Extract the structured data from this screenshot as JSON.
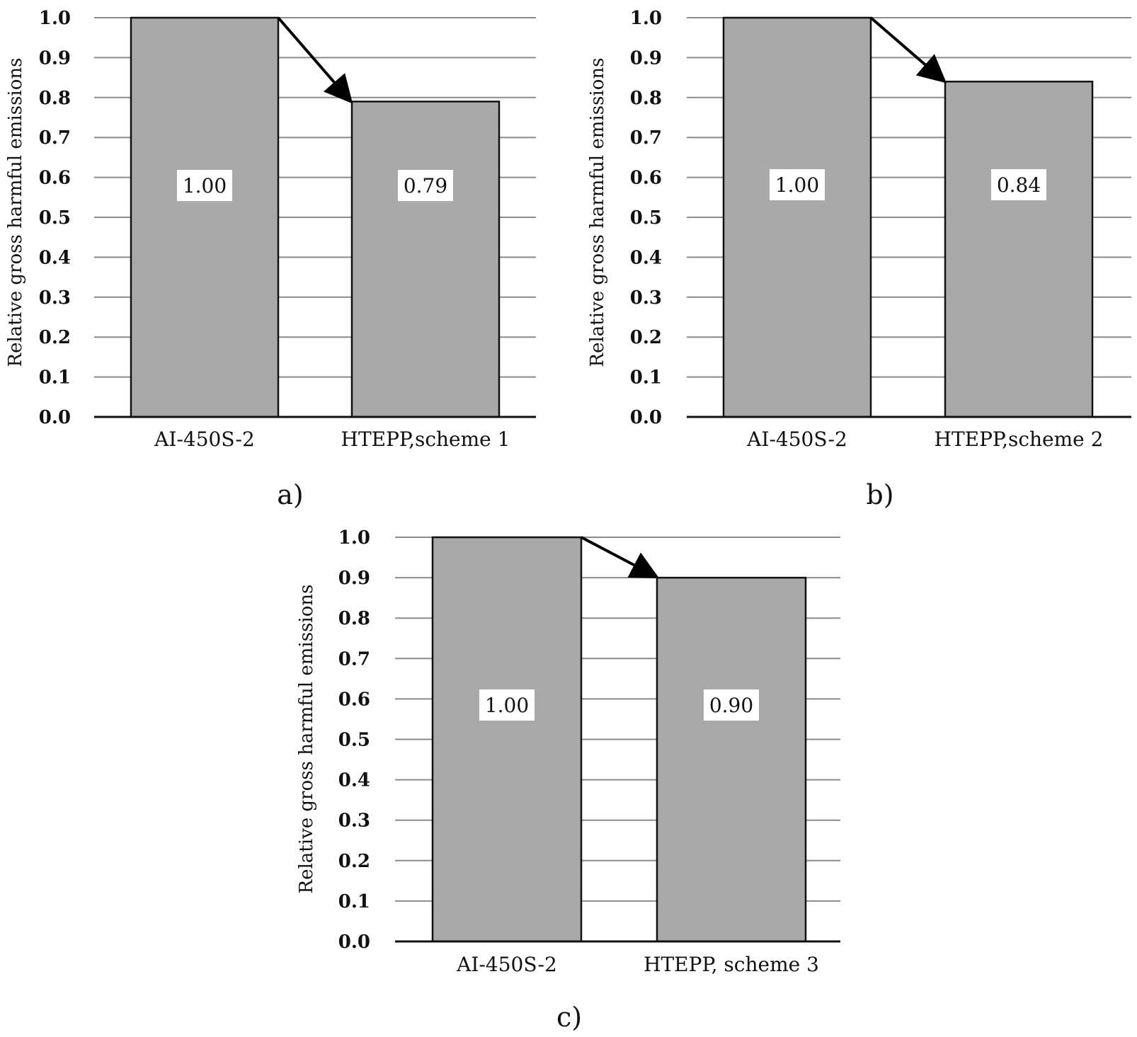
{
  "chart_data": [
    {
      "type": "bar",
      "panel_label": "a)",
      "ylabel": "Relative gross harmful emissions",
      "categories": [
        "AI-450S-2",
        "HTEPP,scheme 1"
      ],
      "values": [
        1.0,
        0.79
      ],
      "data_labels": [
        "1.00",
        "0.79"
      ],
      "ylim": [
        0,
        1.0
      ],
      "yticks": [
        "0.0",
        "0.1",
        "0.2",
        "0.3",
        "0.4",
        "0.5",
        "0.6",
        "0.7",
        "0.8",
        "0.9",
        "1.0"
      ],
      "grid": true,
      "annotation": "arrow from top of first bar to top of second bar",
      "bar_color": "#a9a9a9"
    },
    {
      "type": "bar",
      "panel_label": "b)",
      "ylabel": "Relative gross harmful emissions",
      "categories": [
        "AI-450S-2",
        "HTEPP,scheme 2"
      ],
      "values": [
        1.0,
        0.84
      ],
      "data_labels": [
        "1.00",
        "0.84"
      ],
      "ylim": [
        0,
        1.0
      ],
      "yticks": [
        "0.0",
        "0.1",
        "0.2",
        "0.3",
        "0.4",
        "0.5",
        "0.6",
        "0.7",
        "0.8",
        "0.9",
        "1.0"
      ],
      "grid": true,
      "annotation": "arrow from top of first bar to top of second bar",
      "bar_color": "#a9a9a9"
    },
    {
      "type": "bar",
      "panel_label": "c)",
      "ylabel": "Relative gross harmful emissions",
      "categories": [
        "AI-450S-2",
        "HTEPP, scheme 3"
      ],
      "values": [
        1.0,
        0.9
      ],
      "data_labels": [
        "1.00",
        "0.90"
      ],
      "ylim": [
        0,
        1.0
      ],
      "yticks": [
        "0.0",
        "0.1",
        "0.2",
        "0.3",
        "0.4",
        "0.5",
        "0.6",
        "0.7",
        "0.8",
        "0.9",
        "1.0"
      ],
      "grid": true,
      "annotation": "arrow from top of first bar to top of second bar",
      "bar_color": "#a9a9a9"
    }
  ]
}
